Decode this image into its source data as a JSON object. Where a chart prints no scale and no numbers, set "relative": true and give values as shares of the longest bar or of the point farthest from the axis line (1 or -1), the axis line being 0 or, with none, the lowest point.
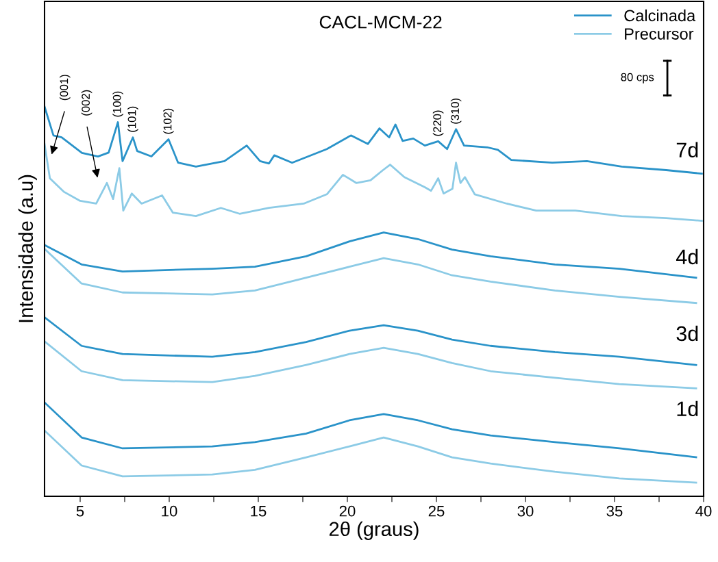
{
  "chart_data": {
    "type": "line",
    "title": "CACL-MCM-22",
    "xlabel": "2θ (graus)",
    "ylabel": "Intensidade (a.u)",
    "relative": true,
    "xlim": [
      3,
      40
    ],
    "xticks": [
      5,
      {
        "value": 7.5,
        "label": null
      },
      10,
      {
        "value": 12.5,
        "label": null
      },
      15,
      {
        "value": 17.5,
        "label": null
      },
      20,
      {
        "value": 22.5,
        "label": null
      },
      25,
      {
        "value": 27.5,
        "label": null
      },
      30,
      {
        "value": 32.5,
        "label": null
      },
      35,
      {
        "value": 37.5,
        "label": null
      },
      40
    ],
    "tick_labels": "x",
    "grid": false,
    "legend": "top right",
    "marker": "none",
    "line_style": "solid",
    "series": [
      {
        "name": "Calcinada",
        "color": "#2a93c9",
        "x": [
          3.0,
          3.5,
          3.96,
          5.1,
          6.0,
          6.6,
          7.12,
          7.38,
          7.96,
          8.2,
          9.0,
          9.96,
          10.5,
          11.5,
          13.1,
          14.35,
          15.1,
          15.6,
          15.9,
          16.9,
          18.85,
          20.2,
          21.15,
          21.8,
          22.35,
          22.7,
          23.1,
          23.7,
          24.35,
          25.1,
          25.6,
          26.1,
          26.55,
          27.9,
          28.45,
          29.2,
          31.5,
          33.45,
          35.4,
          37.9,
          39.9
        ],
        "values": [
          1.0,
          0.926,
          0.921,
          0.881,
          0.872,
          0.882,
          0.96,
          0.86,
          0.921,
          0.886,
          0.872,
          0.916,
          0.856,
          0.846,
          0.86,
          0.9,
          0.86,
          0.854,
          0.875,
          0.856,
          0.891,
          0.926,
          0.904,
          0.944,
          0.921,
          0.954,
          0.912,
          0.918,
          0.9,
          0.911,
          0.891,
          0.942,
          0.9,
          0.895,
          0.889,
          0.863,
          0.856,
          0.86,
          0.846,
          0.837,
          0.828
        ]
      },
      {
        "name": "Precursor",
        "color": "#8ccbe6",
        "x": [
          3.0,
          3.3,
          4.1,
          5.0,
          5.9,
          6.5,
          6.85,
          7.2,
          7.42,
          7.9,
          8.45,
          9.6,
          10.2,
          11.5,
          12.9,
          13.95,
          15.6,
          17.55,
          18.85,
          19.75,
          20.5,
          21.3,
          22.0,
          22.4,
          23.2,
          24.35,
          24.7,
          25.1,
          25.4,
          25.9,
          26.1,
          26.35,
          26.6,
          27.15,
          28.95,
          30.6,
          32.8,
          35.4,
          37.9,
          39.9
        ],
        "values": [
          0.904,
          0.816,
          0.781,
          0.758,
          0.751,
          0.804,
          0.763,
          0.842,
          0.733,
          0.777,
          0.751,
          0.772,
          0.728,
          0.719,
          0.74,
          0.725,
          0.74,
          0.751,
          0.775,
          0.825,
          0.804,
          0.811,
          0.837,
          0.851,
          0.819,
          0.793,
          0.784,
          0.816,
          0.777,
          0.789,
          0.856,
          0.804,
          0.819,
          0.775,
          0.751,
          0.733,
          0.733,
          0.719,
          0.714,
          0.707
        ]
      },
      {
        "color": "#2a93c9",
        "x": [
          3.04,
          5.08,
          7.38,
          12.42,
          14.81,
          17.69,
          20.12,
          22.04,
          23.96,
          25.88,
          28.04,
          31.65,
          35.27,
          39.58
        ],
        "values": [
          0.644,
          0.595,
          0.577,
          0.584,
          0.589,
          0.616,
          0.654,
          0.677,
          0.66,
          0.633,
          0.616,
          0.595,
          0.584,
          0.561
        ]
      },
      {
        "color": "#8ccbe6",
        "x": [
          3.04,
          5.08,
          7.38,
          12.42,
          14.81,
          17.69,
          20.12,
          22.04,
          23.96,
          25.88,
          28.04,
          31.65,
          35.27,
          39.58
        ],
        "values": [
          0.633,
          0.546,
          0.523,
          0.518,
          0.528,
          0.561,
          0.589,
          0.611,
          0.595,
          0.567,
          0.551,
          0.528,
          0.512,
          0.496
        ]
      },
      {
        "color": "#2a93c9",
        "x": [
          3.04,
          5.08,
          7.38,
          12.42,
          14.81,
          17.69,
          20.12,
          22.04,
          23.96,
          25.88,
          28.04,
          31.65,
          35.27,
          39.58
        ],
        "values": [
          0.458,
          0.386,
          0.365,
          0.358,
          0.37,
          0.396,
          0.425,
          0.439,
          0.425,
          0.402,
          0.386,
          0.37,
          0.358,
          0.337
        ]
      },
      {
        "color": "#8ccbe6",
        "x": [
          3.04,
          5.08,
          7.38,
          12.42,
          14.81,
          17.69,
          20.12,
          22.04,
          23.96,
          25.88,
          28.04,
          31.65,
          35.27,
          39.58
        ],
        "values": [
          0.396,
          0.321,
          0.298,
          0.293,
          0.309,
          0.337,
          0.365,
          0.381,
          0.365,
          0.342,
          0.321,
          0.304,
          0.288,
          0.277
        ]
      },
      {
        "color": "#2a93c9",
        "x": [
          3.04,
          5.08,
          7.38,
          12.42,
          14.81,
          17.69,
          20.12,
          22.04,
          23.96,
          25.88,
          28.04,
          31.65,
          35.27,
          39.58
        ],
        "values": [
          0.239,
          0.151,
          0.123,
          0.128,
          0.139,
          0.161,
          0.195,
          0.211,
          0.195,
          0.172,
          0.156,
          0.139,
          0.123,
          0.1
        ]
      },
      {
        "color": "#8ccbe6",
        "x": [
          3.04,
          5.08,
          7.38,
          12.42,
          14.81,
          17.69,
          20.12,
          22.04,
          23.96,
          25.88,
          28.04,
          31.65,
          35.27,
          39.58
        ],
        "values": [
          0.167,
          0.079,
          0.051,
          0.056,
          0.068,
          0.1,
          0.128,
          0.151,
          0.128,
          0.1,
          0.084,
          0.063,
          0.046,
          0.035
        ]
      }
    ],
    "annotations": [
      "(001)",
      "(002)",
      {
        "text": "(100)",
        "x": 7.12,
        "y": 0.96
      },
      {
        "text": "(101)",
        "x": 7.96,
        "y": 0.921
      },
      {
        "text": "(102)",
        "x": 9.96,
        "y": 0.916
      },
      {
        "text": "(220)",
        "x": 25.1,
        "y": 0.911
      },
      {
        "text": "(310)",
        "x": 26.1,
        "y": 0.942
      },
      "7d",
      "4d",
      "3d",
      "1d",
      "80 cps"
    ]
  }
}
